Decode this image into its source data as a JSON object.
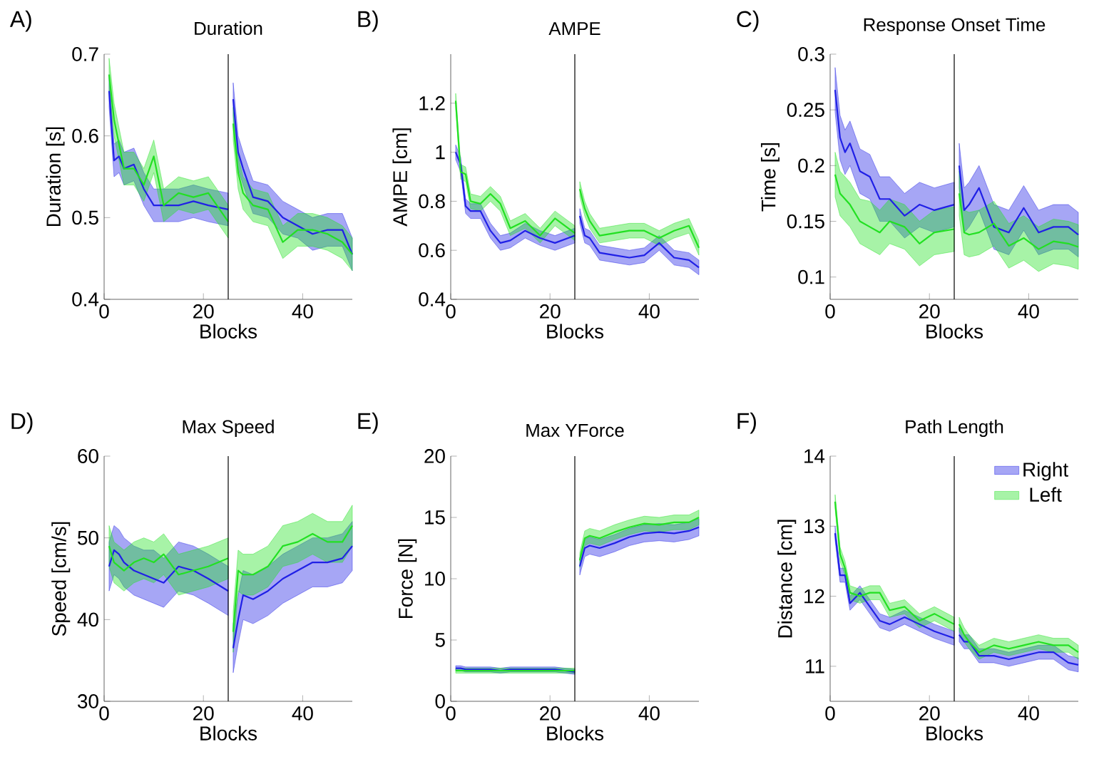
{
  "chart_data": [
    {
      "type": "line",
      "title": "Duration",
      "xlabel": "Blocks",
      "ylabel": "Duration [s]",
      "annotations": [
        "A)"
      ],
      "x": [
        1,
        2,
        3,
        4,
        6,
        8,
        10,
        12,
        15,
        18,
        21,
        25,
        25.5,
        26,
        27,
        28,
        30,
        33,
        36,
        39,
        42,
        45,
        48,
        50
      ],
      "xlim": [
        0,
        50
      ],
      "xticks": [
        0,
        20,
        40
      ],
      "ylim": [
        0.4,
        0.7
      ],
      "yticks": [
        0.4,
        0.5,
        0.6,
        0.7
      ],
      "ref_lines": [
        {
          "axis": "x",
          "value": 25,
          "color": "#000000"
        }
      ],
      "series": [
        {
          "color": "#2020e6",
          "values": [
            0.655,
            0.57,
            0.575,
            0.56,
            0.565,
            0.535,
            0.515,
            0.515,
            0.515,
            0.52,
            0.515,
            0.51,
            null,
            0.645,
            0.58,
            0.56,
            0.525,
            0.52,
            0.5,
            0.49,
            0.48,
            0.485,
            0.485,
            0.455
          ],
          "lower": [
            0.635,
            0.55,
            0.555,
            0.54,
            0.545,
            0.515,
            0.495,
            0.495,
            0.495,
            0.5,
            0.495,
            0.49,
            null,
            0.625,
            0.56,
            0.54,
            0.505,
            0.5,
            0.48,
            0.475,
            0.46,
            0.465,
            0.465,
            0.435
          ],
          "upper": [
            0.675,
            0.59,
            0.595,
            0.58,
            0.585,
            0.555,
            0.535,
            0.535,
            0.535,
            0.54,
            0.535,
            0.53,
            null,
            0.665,
            0.6,
            0.58,
            0.545,
            0.54,
            0.52,
            0.51,
            0.5,
            0.505,
            0.505,
            0.475
          ]
        },
        {
          "color": "#22e022",
          "values": [
            0.675,
            0.62,
            0.59,
            0.56,
            0.56,
            0.54,
            0.575,
            0.515,
            0.53,
            0.525,
            0.53,
            0.495,
            null,
            0.615,
            0.555,
            0.53,
            0.515,
            0.51,
            0.47,
            0.485,
            0.485,
            0.48,
            0.47,
            0.455
          ],
          "lower": [
            0.655,
            0.6,
            0.57,
            0.54,
            0.54,
            0.52,
            0.555,
            0.495,
            0.51,
            0.505,
            0.51,
            0.475,
            null,
            0.595,
            0.535,
            0.51,
            0.495,
            0.49,
            0.45,
            0.465,
            0.465,
            0.46,
            0.45,
            0.435
          ],
          "upper": [
            0.695,
            0.64,
            0.61,
            0.58,
            0.58,
            0.56,
            0.595,
            0.535,
            0.55,
            0.545,
            0.55,
            0.515,
            null,
            0.635,
            0.575,
            0.55,
            0.535,
            0.53,
            0.49,
            0.505,
            0.505,
            0.5,
            0.49,
            0.475
          ]
        }
      ]
    },
    {
      "type": "line",
      "title": "AMPE",
      "xlabel": "Blocks",
      "ylabel": "AMPE [cm]",
      "annotations": [
        "B)"
      ],
      "x": [
        1,
        2,
        3,
        4,
        6,
        8,
        10,
        12,
        15,
        18,
        21,
        25,
        25.5,
        26,
        27,
        28,
        30,
        33,
        36,
        39,
        42,
        45,
        48,
        50
      ],
      "xlim": [
        0,
        50
      ],
      "xticks": [
        0,
        20,
        40
      ],
      "ylim": [
        0.4,
        1.4
      ],
      "yticks": [
        0.4,
        0.6,
        0.8,
        1,
        1.2
      ],
      "ref_lines": [
        {
          "axis": "x",
          "value": 25,
          "color": "#000000"
        }
      ],
      "series": [
        {
          "color": "#2020e6",
          "values": [
            1.0,
            0.95,
            0.78,
            0.76,
            0.76,
            0.68,
            0.63,
            0.64,
            0.68,
            0.65,
            0.63,
            0.66,
            null,
            0.74,
            0.66,
            0.65,
            0.59,
            0.58,
            0.57,
            0.58,
            0.63,
            0.57,
            0.56,
            0.53
          ],
          "lower": [
            0.97,
            0.92,
            0.75,
            0.73,
            0.73,
            0.65,
            0.6,
            0.61,
            0.65,
            0.62,
            0.6,
            0.63,
            null,
            0.71,
            0.63,
            0.62,
            0.56,
            0.55,
            0.54,
            0.55,
            0.6,
            0.54,
            0.53,
            0.5
          ],
          "upper": [
            1.03,
            0.98,
            0.81,
            0.79,
            0.79,
            0.71,
            0.66,
            0.67,
            0.71,
            0.68,
            0.66,
            0.69,
            null,
            0.77,
            0.69,
            0.68,
            0.62,
            0.61,
            0.6,
            0.61,
            0.66,
            0.6,
            0.59,
            0.56
          ]
        },
        {
          "color": "#22e022",
          "values": [
            1.21,
            0.92,
            0.91,
            0.8,
            0.79,
            0.83,
            0.79,
            0.69,
            0.72,
            0.66,
            0.73,
            0.67,
            null,
            0.85,
            0.77,
            0.72,
            0.66,
            0.67,
            0.68,
            0.68,
            0.65,
            0.68,
            0.7,
            0.61
          ],
          "lower": [
            1.18,
            0.89,
            0.88,
            0.77,
            0.76,
            0.8,
            0.76,
            0.66,
            0.69,
            0.63,
            0.7,
            0.64,
            null,
            0.82,
            0.74,
            0.69,
            0.63,
            0.64,
            0.65,
            0.65,
            0.62,
            0.65,
            0.67,
            0.58
          ],
          "upper": [
            1.24,
            0.95,
            0.94,
            0.83,
            0.82,
            0.86,
            0.82,
            0.72,
            0.75,
            0.69,
            0.76,
            0.7,
            null,
            0.88,
            0.8,
            0.75,
            0.69,
            0.7,
            0.71,
            0.71,
            0.68,
            0.71,
            0.73,
            0.64
          ]
        }
      ]
    },
    {
      "type": "line",
      "title": "Response Onset Time",
      "xlabel": "Blocks",
      "ylabel": "Time [s]",
      "annotations": [
        "C)"
      ],
      "x": [
        1,
        2,
        3,
        4,
        6,
        8,
        10,
        12,
        15,
        18,
        21,
        25,
        25.5,
        26,
        27,
        28,
        30,
        33,
        36,
        39,
        42,
        45,
        48,
        50
      ],
      "xlim": [
        0,
        50
      ],
      "xticks": [
        0,
        20,
        40
      ],
      "ylim": [
        0.08,
        0.3
      ],
      "yticks": [
        0.1,
        0.15,
        0.2,
        0.25,
        0.3
      ],
      "ref_lines": [
        {
          "axis": "x",
          "value": 25,
          "color": "#000000"
        }
      ],
      "series": [
        {
          "color": "#2020e6",
          "values": [
            0.268,
            0.225,
            0.212,
            0.22,
            0.195,
            0.19,
            0.17,
            0.17,
            0.155,
            0.165,
            0.16,
            0.165,
            null,
            0.2,
            0.16,
            0.165,
            0.18,
            0.145,
            0.14,
            0.162,
            0.14,
            0.145,
            0.145,
            0.138
          ],
          "lower": [
            0.248,
            0.205,
            0.192,
            0.2,
            0.175,
            0.17,
            0.15,
            0.15,
            0.135,
            0.145,
            0.14,
            0.145,
            null,
            0.18,
            0.14,
            0.145,
            0.16,
            0.125,
            0.12,
            0.142,
            0.12,
            0.125,
            0.125,
            0.118
          ],
          "upper": [
            0.288,
            0.245,
            0.232,
            0.24,
            0.215,
            0.21,
            0.19,
            0.19,
            0.175,
            0.185,
            0.18,
            0.185,
            null,
            0.22,
            0.18,
            0.185,
            0.2,
            0.165,
            0.16,
            0.182,
            0.16,
            0.165,
            0.165,
            0.158
          ]
        },
        {
          "color": "#22e022",
          "values": [
            0.192,
            0.175,
            0.17,
            0.165,
            0.15,
            0.145,
            0.14,
            0.15,
            0.145,
            0.13,
            0.14,
            0.143,
            null,
            0.175,
            0.14,
            0.138,
            0.14,
            0.148,
            0.128,
            0.135,
            0.125,
            0.132,
            0.13,
            0.127
          ],
          "lower": [
            0.172,
            0.155,
            0.15,
            0.145,
            0.13,
            0.125,
            0.12,
            0.13,
            0.125,
            0.11,
            0.12,
            0.123,
            null,
            0.155,
            0.12,
            0.118,
            0.12,
            0.128,
            0.108,
            0.115,
            0.105,
            0.112,
            0.11,
            0.107
          ],
          "upper": [
            0.212,
            0.195,
            0.19,
            0.185,
            0.17,
            0.168,
            0.16,
            0.17,
            0.165,
            0.15,
            0.16,
            0.163,
            null,
            0.195,
            0.16,
            0.158,
            0.16,
            0.168,
            0.148,
            0.155,
            0.145,
            0.152,
            0.15,
            0.147
          ]
        }
      ]
    },
    {
      "type": "line",
      "title": "Max Speed",
      "xlabel": "Blocks",
      "ylabel": "Speed [cm/s]",
      "annotations": [
        "D)"
      ],
      "x": [
        1,
        2,
        3,
        4,
        6,
        8,
        10,
        12,
        15,
        18,
        21,
        25,
        25.5,
        26,
        27,
        28,
        30,
        33,
        36,
        39,
        42,
        45,
        48,
        50
      ],
      "xlim": [
        0,
        50
      ],
      "xticks": [
        0,
        20,
        40
      ],
      "ylim": [
        30,
        60
      ],
      "yticks": [
        30,
        40,
        50,
        60
      ],
      "ref_lines": [
        {
          "axis": "x",
          "value": 25,
          "color": "#000000"
        }
      ],
      "series": [
        {
          "color": "#2020e6",
          "values": [
            46.5,
            48.5,
            48,
            47,
            46,
            45.5,
            45,
            44.5,
            46.5,
            46,
            45,
            43.5,
            null,
            36.5,
            40,
            43,
            42.5,
            43.5,
            45,
            46,
            47,
            47,
            47.5,
            49
          ],
          "lower": [
            43.5,
            45.5,
            45,
            44,
            43,
            42.5,
            42,
            41.5,
            43.5,
            43,
            42,
            40.5,
            null,
            33.5,
            37,
            40,
            39.5,
            40.5,
            42,
            43,
            44,
            44,
            44.5,
            46
          ],
          "upper": [
            49.5,
            51.5,
            51,
            50,
            49,
            48.5,
            48.5,
            47.5,
            49.5,
            49,
            48,
            46.5,
            null,
            39.5,
            43,
            46,
            45.5,
            46.5,
            48,
            49,
            50,
            50,
            50.5,
            52
          ]
        },
        {
          "color": "#22e022",
          "values": [
            49,
            47,
            46.5,
            46,
            47,
            47.5,
            47,
            48,
            45.5,
            46,
            46.5,
            47.5,
            null,
            38.5,
            46,
            45.5,
            45.5,
            46.5,
            49,
            49.5,
            50.5,
            49.5,
            49.5,
            51.5
          ],
          "lower": [
            46.5,
            44.5,
            44,
            43.5,
            44.5,
            45,
            44.5,
            45.5,
            43,
            43.5,
            44,
            45,
            null,
            36,
            43.5,
            43,
            43,
            44,
            46.5,
            47,
            48,
            47,
            47,
            49
          ],
          "upper": [
            51.5,
            49.5,
            49,
            48.5,
            49.5,
            50,
            49.5,
            50.5,
            48,
            48.5,
            49,
            50,
            null,
            41,
            48.5,
            48,
            48,
            49,
            51.5,
            52,
            53,
            52,
            52,
            54
          ]
        }
      ]
    },
    {
      "type": "line",
      "title": "Max YForce",
      "xlabel": "Blocks",
      "ylabel": "Force [N]",
      "annotations": [
        "E)"
      ],
      "x": [
        1,
        2,
        3,
        4,
        6,
        8,
        10,
        12,
        15,
        18,
        21,
        25,
        25.5,
        26,
        27,
        28,
        30,
        33,
        36,
        39,
        42,
        45,
        48,
        50
      ],
      "xlim": [
        0,
        50
      ],
      "xticks": [
        0,
        20,
        40
      ],
      "ylim": [
        0,
        20
      ],
      "yticks": [
        0,
        5,
        10,
        15,
        20
      ],
      "ref_lines": [
        {
          "axis": "x",
          "value": 25,
          "color": "#000000"
        }
      ],
      "series": [
        {
          "color": "#2020e6",
          "values": [
            2.7,
            2.7,
            2.6,
            2.6,
            2.6,
            2.6,
            2.5,
            2.6,
            2.6,
            2.6,
            2.6,
            2.4,
            null,
            11,
            12.5,
            12.7,
            12.5,
            12.9,
            13.4,
            13.7,
            13.8,
            13.7,
            13.9,
            14.2
          ],
          "lower": [
            2.5,
            2.5,
            2.4,
            2.4,
            2.4,
            2.4,
            2.3,
            2.4,
            2.4,
            2.4,
            2.4,
            2.2,
            null,
            10.3,
            11.8,
            12,
            11.8,
            12.2,
            12.7,
            13,
            13.1,
            13,
            13.2,
            13.5
          ],
          "upper": [
            2.9,
            2.9,
            2.8,
            2.8,
            2.8,
            2.8,
            2.7,
            2.8,
            2.8,
            2.8,
            2.8,
            2.6,
            null,
            11.7,
            13.2,
            13.4,
            13.2,
            13.6,
            14.1,
            14.4,
            14.5,
            14.4,
            14.6,
            14.9
          ]
        },
        {
          "color": "#22e022",
          "values": [
            2.5,
            2.5,
            2.5,
            2.5,
            2.5,
            2.5,
            2.5,
            2.5,
            2.5,
            2.5,
            2.5,
            2.5,
            null,
            11.5,
            13.3,
            13.5,
            13.3,
            13.8,
            14.2,
            14.5,
            14.4,
            14.6,
            14.6,
            15
          ],
          "lower": [
            2.3,
            2.3,
            2.3,
            2.3,
            2.3,
            2.3,
            2.3,
            2.3,
            2.3,
            2.3,
            2.3,
            2.3,
            null,
            10.9,
            12.7,
            12.9,
            12.7,
            13.2,
            13.6,
            13.9,
            13.8,
            14,
            14,
            14.4
          ],
          "upper": [
            2.7,
            2.7,
            2.7,
            2.7,
            2.7,
            2.7,
            2.7,
            2.7,
            2.7,
            2.7,
            2.7,
            2.7,
            null,
            12.1,
            13.9,
            14.1,
            13.9,
            14.4,
            14.8,
            15.1,
            15,
            15.2,
            15.2,
            15.6
          ]
        }
      ]
    },
    {
      "type": "line",
      "title": "Path Length",
      "xlabel": "Blocks",
      "ylabel": "Distance [cm]",
      "annotations": [
        "F)"
      ],
      "x": [
        1,
        2,
        3,
        4,
        6,
        8,
        10,
        12,
        15,
        18,
        21,
        25,
        25.5,
        26,
        27,
        28,
        30,
        33,
        36,
        39,
        42,
        45,
        48,
        50
      ],
      "xlim": [
        0,
        50
      ],
      "xticks": [
        0,
        20,
        40
      ],
      "ylim": [
        10.5,
        14
      ],
      "yticks": [
        11,
        12,
        13,
        14
      ],
      "ref_lines": [
        {
          "axis": "x",
          "value": 25,
          "color": "#000000"
        }
      ],
      "legend": "top right",
      "series": [
        {
          "name": "Right",
          "color": "#2020e6",
          "values": [
            12.9,
            12.3,
            12.3,
            11.9,
            12.05,
            11.85,
            11.65,
            11.6,
            11.7,
            11.6,
            11.5,
            11.4,
            null,
            11.45,
            11.35,
            11.35,
            11.15,
            11.15,
            11.1,
            11.15,
            11.2,
            11.2,
            11.05,
            11.02
          ],
          "lower": [
            12.8,
            12.2,
            12.2,
            11.8,
            11.95,
            11.75,
            11.55,
            11.5,
            11.6,
            11.5,
            11.4,
            11.3,
            null,
            11.35,
            11.25,
            11.25,
            11.05,
            11.05,
            11,
            11.05,
            11.1,
            11.1,
            10.95,
            10.92
          ],
          "upper": [
            13,
            12.4,
            12.4,
            12,
            12.15,
            11.95,
            11.75,
            11.7,
            11.8,
            11.7,
            11.6,
            11.5,
            null,
            11.55,
            11.45,
            11.45,
            11.25,
            11.25,
            11.2,
            11.25,
            11.3,
            11.3,
            11.15,
            11.12
          ]
        },
        {
          "name": "Left",
          "color": "#22e022",
          "values": [
            13.35,
            12.6,
            12.4,
            12.05,
            12,
            12.05,
            12.05,
            11.8,
            11.85,
            11.65,
            11.75,
            11.6,
            null,
            11.6,
            11.45,
            11.35,
            11.2,
            11.3,
            11.25,
            11.3,
            11.35,
            11.3,
            11.3,
            11.2
          ],
          "lower": [
            13.25,
            12.5,
            12.3,
            11.95,
            11.9,
            11.95,
            11.95,
            11.7,
            11.75,
            11.55,
            11.65,
            11.5,
            null,
            11.5,
            11.35,
            11.25,
            11.1,
            11.2,
            11.15,
            11.2,
            11.25,
            11.2,
            11.2,
            11.1
          ],
          "upper": [
            13.45,
            12.7,
            12.5,
            12.15,
            12.1,
            12.15,
            12.15,
            11.9,
            11.95,
            11.75,
            11.85,
            11.7,
            null,
            11.7,
            11.55,
            11.45,
            11.3,
            11.4,
            11.35,
            11.4,
            11.45,
            11.4,
            11.4,
            11.3
          ]
        }
      ]
    }
  ]
}
